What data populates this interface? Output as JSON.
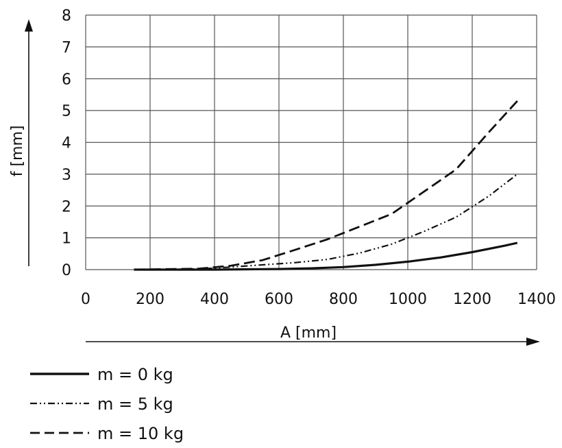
{
  "chart_data": {
    "type": "line",
    "xlabel": "A [mm]",
    "ylabel": "f [mm]",
    "xlim": [
      0,
      1400
    ],
    "ylim": [
      0,
      8
    ],
    "x_ticks": [
      "0",
      "200",
      "400",
      "600",
      "800",
      "1000",
      "1200",
      "1400"
    ],
    "y_ticks": [
      "0",
      "1",
      "2",
      "3",
      "4",
      "5",
      "6",
      "7",
      "8"
    ],
    "grid": true,
    "legend_position": "bottom-left",
    "series": [
      {
        "name": "m = 0 kg",
        "style": "solid",
        "x": [
          150,
          300,
          400,
          500,
          600,
          700,
          800,
          900,
          1000,
          1100,
          1200,
          1300,
          1340
        ],
        "y": [
          0,
          0,
          0,
          0.01,
          0.02,
          0.04,
          0.08,
          0.15,
          0.25,
          0.38,
          0.55,
          0.75,
          0.84
        ]
      },
      {
        "name": "m = 5 kg",
        "style": "dash-dot-dot",
        "x": [
          150,
          350,
          450,
          550,
          650,
          750,
          850,
          950,
          1050,
          1150,
          1250,
          1340
        ],
        "y": [
          0,
          0.02,
          0.08,
          0.15,
          0.22,
          0.32,
          0.52,
          0.8,
          1.2,
          1.65,
          2.3,
          3.0
        ]
      },
      {
        "name": "m = 10 kg",
        "style": "dashed",
        "x": [
          150,
          350,
          450,
          550,
          650,
          750,
          850,
          950,
          1050,
          1150,
          1250,
          1340
        ],
        "y": [
          0,
          0.03,
          0.12,
          0.3,
          0.62,
          0.95,
          1.35,
          1.75,
          2.45,
          3.15,
          4.3,
          5.3
        ]
      }
    ]
  }
}
